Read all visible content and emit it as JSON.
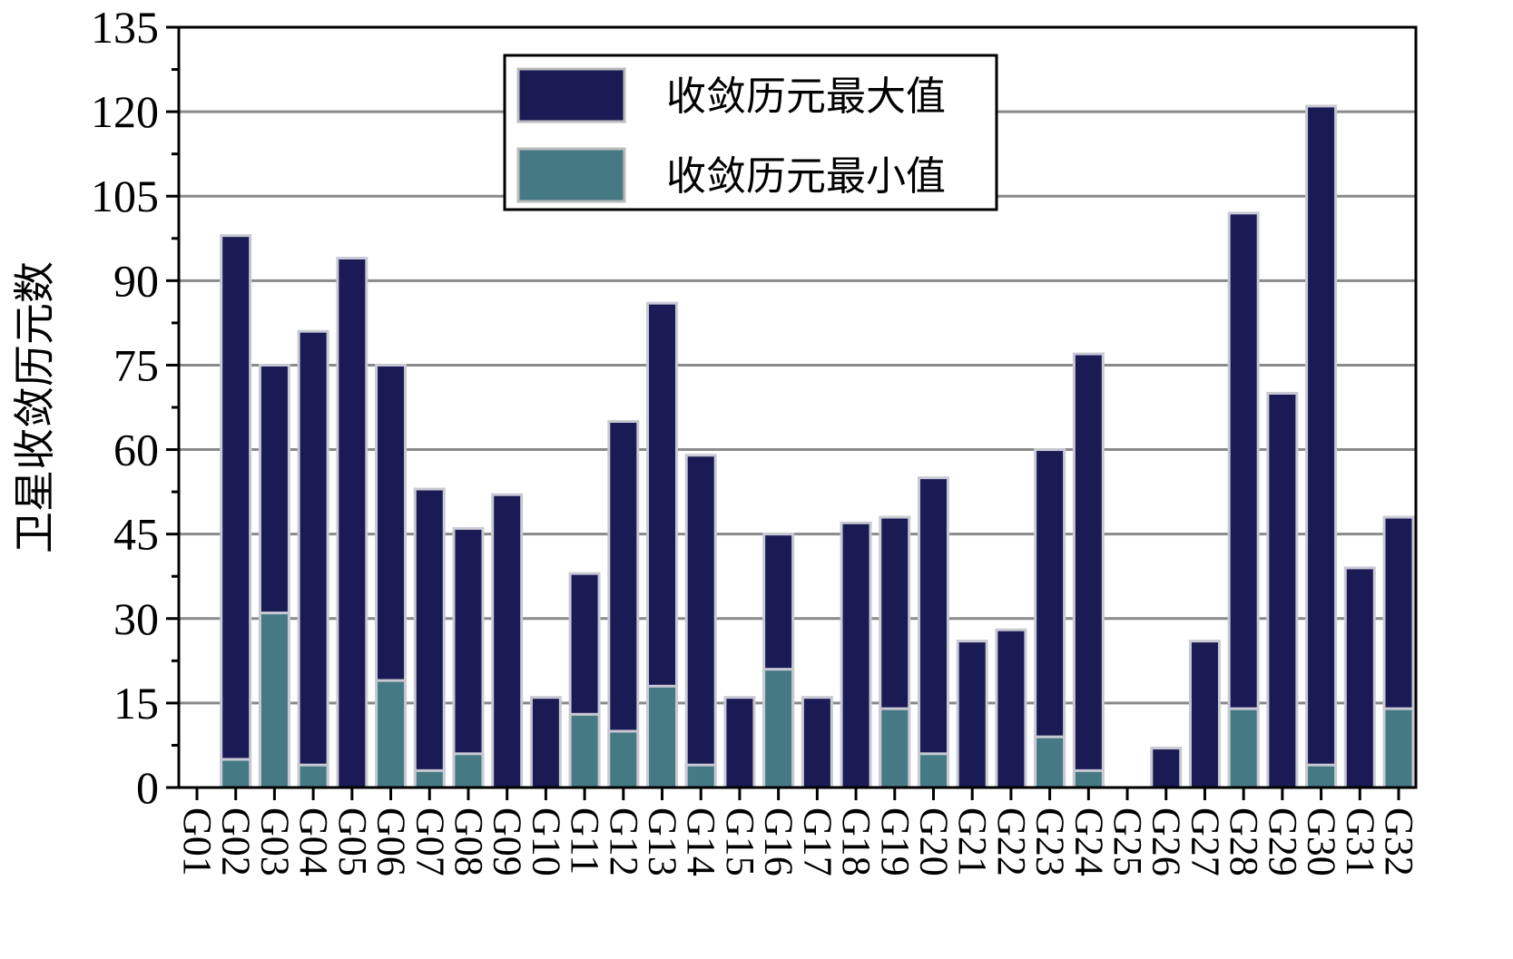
{
  "chart_data": {
    "type": "bar",
    "stacked": "overlay",
    "ylabel": "卫星收敛历元数",
    "ylim": [
      0,
      135
    ],
    "yticks": [
      0,
      15,
      30,
      45,
      60,
      75,
      90,
      105,
      120,
      135
    ],
    "grid": true,
    "legend_position": "top-center",
    "categories": [
      "G01",
      "G02",
      "G03",
      "G04",
      "G05",
      "G06",
      "G07",
      "G08",
      "G09",
      "G10",
      "G11",
      "G12",
      "G13",
      "G14",
      "G15",
      "G16",
      "G17",
      "G18",
      "G19",
      "G20",
      "G21",
      "G22",
      "G23",
      "G24",
      "G25",
      "G26",
      "G27",
      "G28",
      "G29",
      "G30",
      "G31",
      "G32"
    ],
    "series": [
      {
        "name": "收敛历元最大值",
        "color": "#1a1a55",
        "values": [
          0,
          98,
          75,
          81,
          94,
          75,
          53,
          46,
          52,
          16,
          38,
          65,
          86,
          59,
          16,
          45,
          16,
          47,
          48,
          55,
          26,
          28,
          60,
          77,
          0,
          7,
          26,
          102,
          70,
          121,
          39,
          48
        ]
      },
      {
        "name": "收敛历元最小值",
        "color": "#457a84",
        "values": [
          0,
          5,
          31,
          4,
          0,
          19,
          3,
          6,
          0,
          0,
          13,
          10,
          18,
          4,
          0,
          21,
          0,
          0,
          14,
          6,
          0,
          0,
          9,
          3,
          0,
          0,
          0,
          14,
          0,
          4,
          0,
          14
        ]
      }
    ]
  }
}
